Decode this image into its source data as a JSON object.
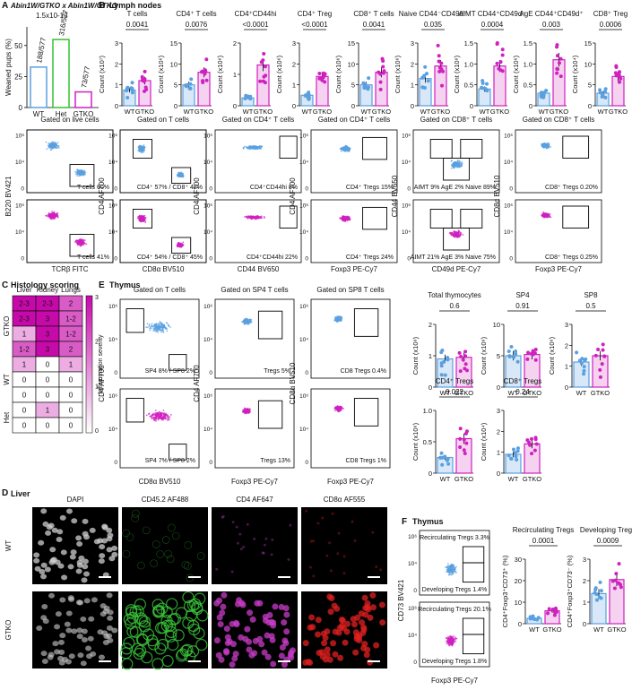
{
  "panels": {
    "A": {
      "letter": "A",
      "title": "Abin1W/GTKO x Abin1W/GTKO",
      "pvalue": "1.5x10-13",
      "ylabel": "Weaned pups (%)",
      "yticks": [
        "0",
        "25",
        "50"
      ],
      "bars": [
        {
          "label": "WT",
          "value": 32.6,
          "ann": "188/577",
          "color": "#5aa0e0"
        },
        {
          "label": "Het",
          "value": 54.8,
          "ann": "316/577",
          "color": "#33c233"
        },
        {
          "label": "GTKO",
          "value": 12.6,
          "ann": "73/577",
          "color": "#d020c0"
        }
      ]
    },
    "B": {
      "letter": "B",
      "title": "Lymph nodes",
      "subpanels": [
        {
          "title": "T cells",
          "p": "0.0041",
          "ylabel": "Count (x10⁷)",
          "yticks": [
            "0",
            "1",
            "2",
            "3"
          ],
          "ymax": 3,
          "wt": 0.75,
          "ko": 1.2
        },
        {
          "title": "CD4⁺ T cells",
          "p": "0.0076",
          "ylabel": "Count (x10⁶)",
          "yticks": [
            "0",
            "5",
            "10",
            "15"
          ],
          "ymax": 15,
          "wt": 5,
          "ko": 8
        },
        {
          "title": "CD4⁺CD44hi",
          "p": "<0.0001",
          "ylabel": "Count (x10⁶)",
          "yticks": [
            "0",
            "1",
            "2"
          ],
          "ymax": 2,
          "wt": 0.25,
          "ko": 1.3
        },
        {
          "title": "CD4⁺ Treg",
          "p": "<0.0001",
          "ylabel": "Count (x10⁶)",
          "yticks": [
            "0",
            "1",
            "2",
            "3"
          ],
          "ymax": 3,
          "wt": 0.5,
          "ko": 1.4
        },
        {
          "title": "CD8⁺ T cells",
          "p": "0.0041",
          "ylabel": "Count (x10⁶)",
          "yticks": [
            "0",
            "5",
            "10",
            "15"
          ],
          "ymax": 15,
          "wt": 5,
          "ko": 8
        },
        {
          "title": "Naive CD44⁻CD49d⁻",
          "p": "0.035",
          "ylabel": "Count (x10⁶)",
          "yticks": [
            "0",
            "1",
            "2",
            "3"
          ],
          "ymax": 3,
          "wt": 1.3,
          "ko": 1.9
        },
        {
          "title": "AIMT CD44⁺CD49d⁻",
          "p": "0.0004",
          "ylabel": "Count (x10⁶)",
          "yticks": [
            "0",
            "0.5",
            "1.0",
            "1.5"
          ],
          "ymax": 1.5,
          "wt": 0.4,
          "ko": 0.95
        },
        {
          "title": "AgE CD44⁺CD49d⁺",
          "p": "0.003",
          "ylabel": "Count (x10⁶)",
          "yticks": [
            "0",
            "0.5",
            "1.0",
            "1.5"
          ],
          "ymax": 1.5,
          "wt": 0.3,
          "ko": 1.1
        },
        {
          "title": "CD8⁺ Treg",
          "p": "0.0006",
          "ylabel": "Count (x10⁴)",
          "yticks": [
            "0",
            "5",
            "10",
            "15"
          ],
          "ymax": 15,
          "wt": 3,
          "ko": 7
        }
      ],
      "group_labels": [
        "WT",
        "GTKO"
      ],
      "flow": [
        {
          "gate": "Gated on live cells",
          "xlab": "TCRβ FITC",
          "ylab": "B220 BV421",
          "top": "T cells 60%",
          "bot": "T cells 41%"
        },
        {
          "gate": "Gated on T cells",
          "xlab": "CD8α BV510",
          "ylab": "CD4 AF700",
          "top": "CD4⁺ 57% / CD8⁺ 42%",
          "bot": "CD4⁺ 54% / CD8⁺ 45%"
        },
        {
          "gate": "Gated on CD4⁺ T cells",
          "xlab": "CD44 BV650",
          "ylab": "CD4 AF700",
          "top": "CD4⁺CD44hi 8%",
          "bot": "CD4⁺CD44hi 22%"
        },
        {
          "gate": "Gated on CD4⁺ T cells",
          "xlab": "Foxp3 PE-Cy7",
          "ylab": "CD4 AF700",
          "top": "CD4⁺ Tregs 15%",
          "bot": "CD4⁺ Tregs 24%"
        },
        {
          "gate": "Gated on CD8⁺ T cells",
          "xlab": "CD49d PE-Cy7",
          "ylab": "CD44 BV650",
          "top": "AIMT 9% AgE 2% Naive 89%",
          "bot": "AIMT 21% AgE 3% Naive 75%"
        },
        {
          "gate": "Gated on CD8⁺ T cells",
          "xlab": "Foxp3 PE-Cy7",
          "ylab": "CD8α BV510",
          "top": "CD8⁺ Tregs 0.20%",
          "bot": "CD8⁺ Tregs 0.25%"
        }
      ]
    },
    "C": {
      "letter": "C",
      "title": "Histology scoring",
      "cols": [
        "Liver",
        "Kidney",
        "Lungs"
      ],
      "groups": [
        {
          "name": "GTKO",
          "rows": [
            [
              "2-3",
              "2-3",
              "2"
            ],
            [
              "2-3",
              "3",
              "1-2"
            ],
            [
              "1",
              "3",
              "1-2"
            ],
            [
              "1-2",
              "3",
              "2"
            ]
          ]
        },
        {
          "name": "WT",
          "rows": [
            [
              "1",
              "0",
              "1"
            ],
            [
              "0",
              "0",
              "0"
            ],
            [
              "0",
              "0",
              "0"
            ]
          ]
        },
        {
          "name": "Het",
          "rows": [
            [
              "0",
              "1",
              "0"
            ],
            [
              "0",
              "0",
              "0"
            ]
          ]
        }
      ],
      "legend_label": "Inflammation severity",
      "legend_ticks": [
        "3",
        "2",
        "1",
        "0"
      ]
    },
    "D": {
      "letter": "D",
      "title": "Liver",
      "channels": [
        "DAPI",
        "CD45.2 AF488",
        "CD4 AF647",
        "CD8α AF555"
      ],
      "rows": [
        "WT",
        "GTKO"
      ]
    },
    "E": {
      "letter": "E",
      "title": "Thymus",
      "flow": [
        {
          "gate": "Gated on T cells",
          "xlab": "CD8α BV510",
          "ylab": "CD4 AF700",
          "top": "SP4 8% / SP8 2%",
          "bot": "SP4 7% / SP8 2%"
        },
        {
          "gate": "Gated on SP4 T cells",
          "xlab": "Foxp3 PE-Cy7",
          "ylab": "CD4 AF700",
          "top": "Tregs 5%",
          "bot": "Tregs 13%"
        },
        {
          "gate": "Gated on SP8 T cells",
          "xlab": "Foxp3 PE-Cy7",
          "ylab": "CD8α BV510",
          "top": "CD8 Tregs 0.4%",
          "bot": "CD8 Tregs 1%"
        }
      ],
      "bars": [
        {
          "title": "Total thymocytes",
          "p": "0.6",
          "ylabel": "Count (x10⁸)",
          "yticks": [
            "0",
            "1",
            "2"
          ],
          "ymax": 2,
          "wt": 0.9,
          "ko": 0.95
        },
        {
          "title": "SP4",
          "p": "0.91",
          "ylabel": "Count (x10⁶)",
          "yticks": [
            "0",
            "5",
            "10"
          ],
          "ymax": 10,
          "wt": 5,
          "ko": 5.2
        },
        {
          "title": "SP8",
          "p": "0.5",
          "ylabel": "Count (x10⁶)",
          "yticks": [
            "0",
            "1",
            "2",
            "3"
          ],
          "ymax": 3,
          "wt": 1.2,
          "ko": 1.5
        },
        {
          "title": "CD4⁺ Tregs",
          "p": "0.022",
          "ylabel": "Count (x10⁶)",
          "yticks": [
            "0",
            "0.5",
            "1.0"
          ],
          "ymax": 1,
          "wt": 0.25,
          "ko": 0.55
        },
        {
          "title": "CD8⁺ Tregs",
          "p": "0.24",
          "ylabel": "Count (x10⁴)",
          "yticks": [
            "0",
            "1",
            "2",
            "3"
          ],
          "ymax": 3,
          "wt": 0.9,
          "ko": 1.4
        }
      ]
    },
    "F": {
      "letter": "F",
      "title": "Thymus",
      "flow": {
        "xlab": "Foxp3 PE-Cy7",
        "ylab": "CD73 BV421",
        "top1": "Recirculating Tregs 3.3%",
        "top2": "Developing Tregs 1.4%",
        "bot1": "Recirculating Tregs 20.1%",
        "bot2": "Developing Tregs 1.8%"
      },
      "bars": [
        {
          "title": "Recirculating Tregs",
          "p": "0.0001",
          "ylabel": "CD4⁺Foxp3⁺CD73⁺ (%)",
          "yticks": [
            "0",
            "10",
            "20",
            "30"
          ],
          "ymax": 30,
          "wt": 2.5,
          "ko": 6
        },
        {
          "title": "Developing Tregs",
          "p": "0.0009",
          "ylabel": "CD4⁺Foxp3⁺CD73⁻ (%)",
          "yticks": [
            "0",
            "1",
            "2",
            "3"
          ],
          "ymax": 3,
          "wt": 1.4,
          "ko": 2.05
        }
      ]
    }
  },
  "colors": {
    "wt": "#5aa0e0",
    "ko": "#d020c0",
    "het": "#33c233"
  }
}
